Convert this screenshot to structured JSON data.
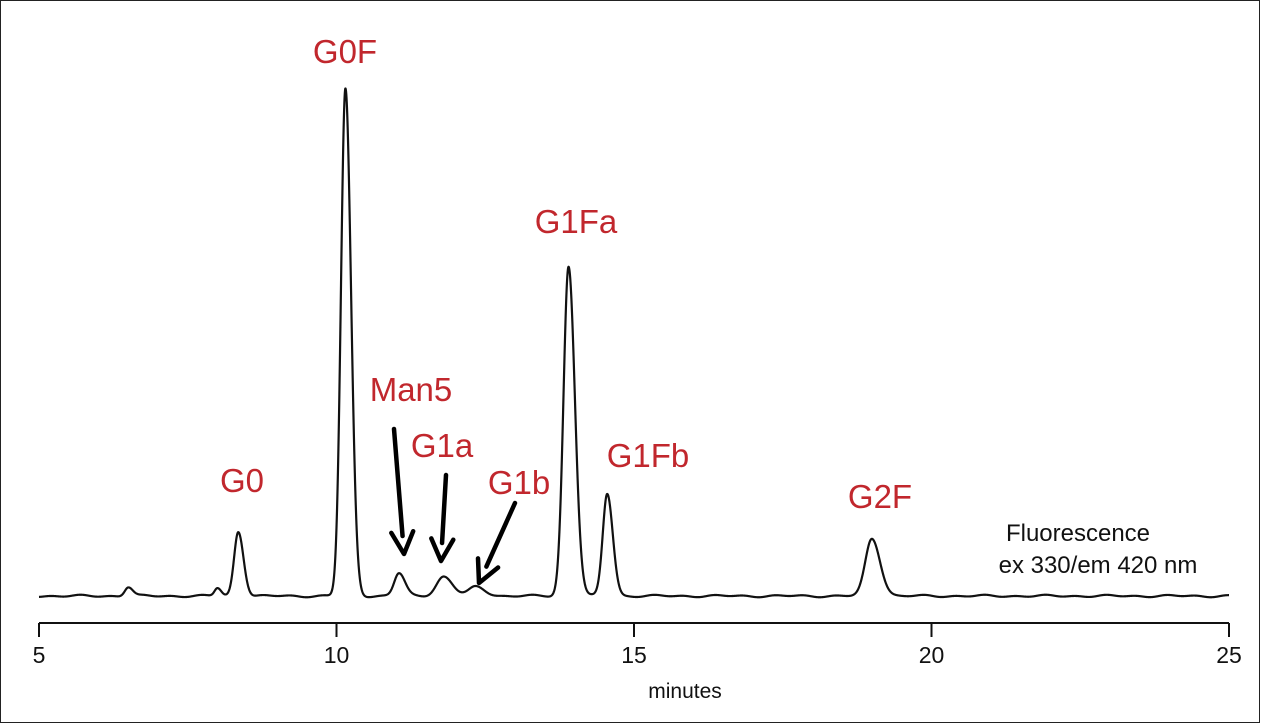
{
  "chart_data": {
    "type": "line",
    "title": "",
    "xlabel": "minutes",
    "ylabel": "",
    "xlim": [
      5,
      25
    ],
    "xticks": [
      5,
      10,
      15,
      20,
      25
    ],
    "xtick_labels": [
      "5",
      "10",
      "15",
      "20",
      "25"
    ],
    "ylim": [
      0,
      100
    ],
    "grid": false,
    "detector_note": [
      "Fluorescence",
      "ex 330/em 420 nm"
    ],
    "peaks": [
      {
        "name": "",
        "rt": 6.5,
        "height": 1.8,
        "width": 0.06
      },
      {
        "name": "",
        "rt": 8.0,
        "height": 1.6,
        "width": 0.05
      },
      {
        "name": "G0",
        "rt": 8.35,
        "height": 12.7,
        "width": 0.07
      },
      {
        "name": "G0F",
        "rt": 10.15,
        "height": 100,
        "width": 0.075
      },
      {
        "name": "Man5",
        "rt": 11.05,
        "height": 4.5,
        "width": 0.08
      },
      {
        "name": "G1a",
        "rt": 11.8,
        "height": 3.8,
        "width": 0.12
      },
      {
        "name": "G1b",
        "rt": 12.35,
        "height": 1.8,
        "width": 0.12
      },
      {
        "name": "G1Fa",
        "rt": 13.9,
        "height": 65,
        "width": 0.085
      },
      {
        "name": "G1Fb",
        "rt": 14.55,
        "height": 20.2,
        "width": 0.075
      },
      {
        "name": "G2F",
        "rt": 19.0,
        "height": 11.3,
        "width": 0.11
      }
    ],
    "annotations": [
      {
        "label": "G0",
        "arrow": false
      },
      {
        "label": "G0F",
        "arrow": false
      },
      {
        "label": "Man5",
        "arrow": true
      },
      {
        "label": "G1a",
        "arrow": true
      },
      {
        "label": "G1b",
        "arrow": true
      },
      {
        "label": "G1Fa",
        "arrow": false
      },
      {
        "label": "G1Fb",
        "arrow": false
      },
      {
        "label": "G2F",
        "arrow": false
      }
    ]
  },
  "colors": {
    "label": "#c1272d",
    "trace": "#111111",
    "axis": "#111111"
  }
}
